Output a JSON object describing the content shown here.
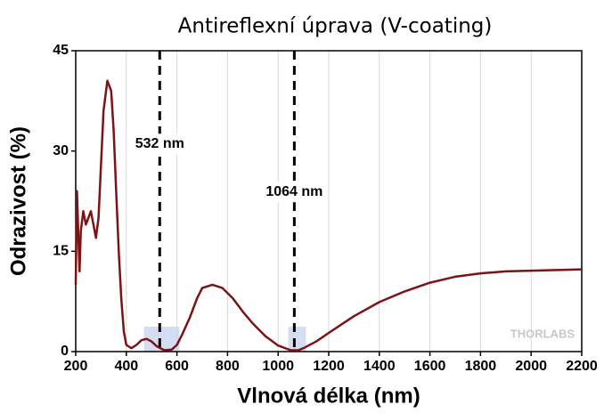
{
  "chart_data": {
    "type": "line",
    "title": "Antireflexní úprava (V-coating)",
    "xlabel": "Vlnová délka (nm)",
    "ylabel": "Odrazivost (%)",
    "xlim": [
      200,
      2200
    ],
    "ylim": [
      0,
      45
    ],
    "xticks": [
      200,
      400,
      600,
      800,
      1000,
      1200,
      1400,
      1600,
      1800,
      2000,
      2200
    ],
    "yticks": [
      0,
      15,
      30,
      45
    ],
    "grid": true,
    "watermark": "THORLABS",
    "vlines": [
      {
        "x": 532,
        "label": "532 nm"
      },
      {
        "x": 1064,
        "label": "1064 nm"
      }
    ],
    "highlights": [
      [
        470,
        610
      ],
      [
        1040,
        1110
      ]
    ],
    "series": [
      {
        "name": "Odrazivost",
        "color": "#7b1416",
        "x": [
          200,
          205,
          210,
          215,
          220,
          230,
          240,
          250,
          260,
          270,
          280,
          290,
          300,
          310,
          325,
          340,
          350,
          360,
          370,
          380,
          390,
          400,
          420,
          440,
          460,
          480,
          500,
          520,
          550,
          580,
          600,
          620,
          650,
          680,
          700,
          740,
          780,
          820,
          860,
          900,
          950,
          1000,
          1050,
          1080,
          1100,
          1150,
          1200,
          1300,
          1400,
          1500,
          1600,
          1700,
          1800,
          1900,
          2000,
          2100,
          2200
        ],
        "values": [
          10,
          24,
          18,
          12,
          18,
          21,
          19,
          20,
          21,
          19,
          17,
          20,
          28,
          36,
          40.5,
          39,
          33,
          24,
          15,
          8,
          3,
          1,
          0.5,
          1,
          1.7,
          1.9,
          1.5,
          0.8,
          0.2,
          0.3,
          1,
          2.5,
          5,
          8,
          9.5,
          10,
          9.5,
          8,
          6,
          4.2,
          2.3,
          0.9,
          0.2,
          0.2,
          0.5,
          1.5,
          2.8,
          5.3,
          7.4,
          9,
          10.3,
          11.2,
          11.7,
          12,
          12.1,
          12.2,
          12.3
        ]
      }
    ]
  }
}
